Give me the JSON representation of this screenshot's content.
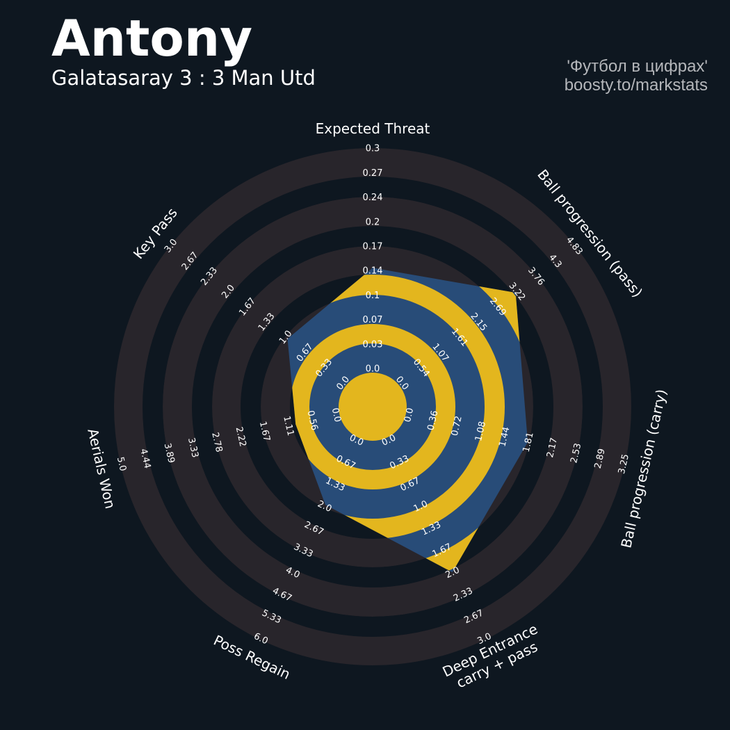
{
  "header": {
    "title": "Antony",
    "subtitle": "Galatasaray 3 : 3 Man Utd",
    "credit_line1": "'Футбол в цифрах'",
    "credit_line2": "boosty.to/markstats"
  },
  "colors": {
    "background": "#0e1720",
    "ring_light": "#28252b",
    "ring_dark": "#0e1720",
    "radar_fill": "#284c78",
    "radar_ring": "#e3b61e",
    "text": "#ffffff",
    "credit": "#b4b6ba"
  },
  "chart_data": {
    "type": "radar",
    "params": [
      {
        "label": [
          "Expected Threat"
        ],
        "value": 0.14,
        "range": [
          0,
          0.3
        ],
        "ticks": [
          "0.0",
          "0.03",
          "0.07",
          "0.1",
          "0.14",
          "0.17",
          "0.2",
          "0.24",
          "0.27",
          "0.3"
        ]
      },
      {
        "label": [
          "Ball progression (pass)"
        ],
        "value": 3.2,
        "range": [
          0,
          4.83
        ],
        "ticks": [
          "0.0",
          "0.54",
          "1.07",
          "1.61",
          "2.15",
          "2.69",
          "3.22",
          "3.76",
          "4.3",
          "4.83"
        ]
      },
      {
        "label": [
          "Ball progression (carry)"
        ],
        "value": 1.81,
        "range": [
          0,
          3.25
        ],
        "ticks": [
          "0.0",
          "0.36",
          "0.72",
          "1.08",
          "1.44",
          "1.81",
          "2.17",
          "2.53",
          "2.89",
          "3.25"
        ]
      },
      {
        "label": [
          "Deep Entrance",
          "carry + pass"
        ],
        "value": 2.0,
        "range": [
          0,
          3.0
        ],
        "ticks": [
          "0.0",
          "0.33",
          "0.67",
          "1.0",
          "1.33",
          "1.67",
          "2.0",
          "2.33",
          "2.67",
          "3.0"
        ]
      },
      {
        "label": [
          "Poss Regain"
        ],
        "value": 2.0,
        "range": [
          0,
          6.0
        ],
        "ticks": [
          "0.0",
          "0.67",
          "1.33",
          "2.0",
          "2.67",
          "3.33",
          "4.0",
          "4.67",
          "5.33",
          "6.0"
        ]
      },
      {
        "label": [
          "Aerials Won"
        ],
        "value": 1.0,
        "range": [
          0,
          5.0
        ],
        "ticks": [
          "0.0",
          "0.56",
          "1.11",
          "1.67",
          "2.22",
          "2.78",
          "3.33",
          "3.89",
          "4.44",
          "5.0"
        ]
      },
      {
        "label": [
          "Key Pass"
        ],
        "value": 1.0,
        "range": [
          0,
          3.0
        ],
        "ticks": [
          "0.0",
          "0.33",
          "0.67",
          "1.0",
          "1.33",
          "1.67",
          "2.0",
          "2.33",
          "2.67",
          "3.0"
        ]
      }
    ]
  }
}
